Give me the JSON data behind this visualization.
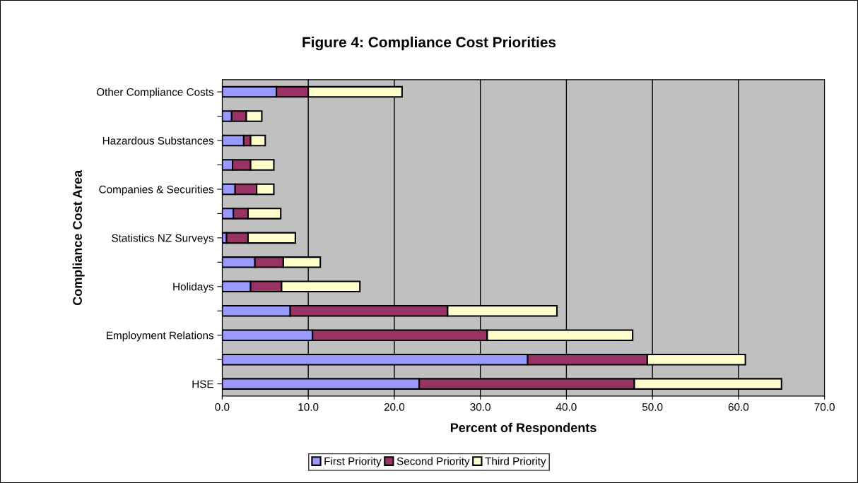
{
  "chart_data": {
    "type": "bar",
    "orientation": "horizontal",
    "stacked": true,
    "title": "Figure 4: Compliance Cost Priorities",
    "xlabel": "Percent of Respondents",
    "ylabel": "Compliance Cost Area",
    "categories": [
      "Other Compliance Costs",
      null,
      "Hazardous Substances",
      null,
      "Companies & Securities",
      null,
      "Statistics NZ Surveys",
      null,
      "Holidays",
      null,
      "Employment Relations",
      null,
      "HSE"
    ],
    "series": [
      {
        "name": "First Priority",
        "color": "#9999ff",
        "values": [
          6.3,
          1.1,
          2.5,
          1.2,
          1.5,
          1.3,
          0.5,
          3.8,
          3.3,
          7.9,
          10.5,
          35.5,
          22.9
        ]
      },
      {
        "name": "Second Priority",
        "color": "#993366",
        "values": [
          3.7,
          1.7,
          0.8,
          2.1,
          2.5,
          1.7,
          2.5,
          3.3,
          3.6,
          18.3,
          20.3,
          13.9,
          25.0
        ]
      },
      {
        "name": "Third Priority",
        "color": "#ffffcc",
        "values": [
          10.9,
          1.8,
          1.7,
          2.7,
          2.0,
          3.8,
          5.5,
          4.3,
          9.1,
          12.7,
          16.9,
          11.4,
          17.1
        ]
      }
    ],
    "xlim": [
      0,
      70
    ],
    "xticks": [
      {
        "value": 0,
        "label": "0.0"
      },
      {
        "value": 10,
        "label": "10.0"
      },
      {
        "value": 20,
        "label": "20.0"
      },
      {
        "value": 30,
        "label": "30.0"
      },
      {
        "value": 40,
        "label": "40.0"
      },
      {
        "value": 50,
        "label": "50.0"
      },
      {
        "value": 60,
        "label": "60.0"
      },
      {
        "value": 70,
        "label": "70.0"
      }
    ],
    "grid": "x",
    "legend": "bottom"
  }
}
